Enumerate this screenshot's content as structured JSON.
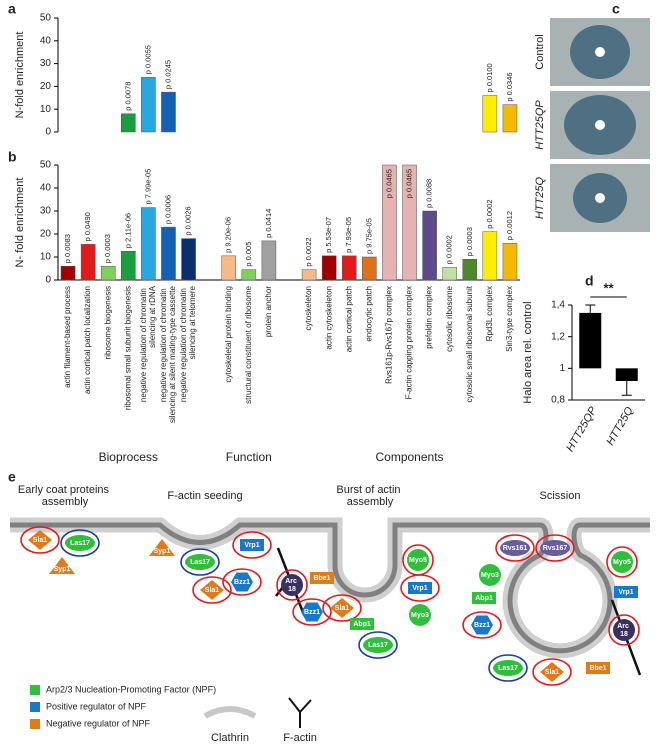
{
  "chart_data": [
    {
      "panel": "a",
      "type": "bar",
      "ylabel": "N-fold enrichment",
      "ylim": [
        0,
        50
      ],
      "yticks": [
        0,
        10,
        20,
        30,
        40,
        50
      ],
      "groups": [
        {
          "values": [
            null,
            null,
            null,
            8,
            24,
            17.5,
            null
          ],
          "p_values": [
            null,
            null,
            null,
            "p 0.0078",
            "p 0.0055",
            "p 0.0245",
            null
          ],
          "colors": [
            null,
            null,
            null,
            "#1a9e3f",
            "#29a8e0",
            "#1560b0",
            null
          ]
        },
        {
          "values": [
            null,
            null,
            null
          ],
          "p_values": [
            null,
            null,
            null
          ],
          "colors": [
            null,
            null,
            null
          ]
        },
        {
          "values": [
            null,
            null,
            null,
            null,
            null,
            null,
            null,
            null,
            null,
            16,
            12
          ],
          "p_values": [
            null,
            null,
            null,
            null,
            null,
            null,
            null,
            null,
            null,
            "p 0.0100",
            "p 0.0346"
          ],
          "colors": [
            null,
            null,
            null,
            null,
            null,
            null,
            null,
            null,
            null,
            "#ffee00",
            "#f5b800"
          ]
        }
      ]
    },
    {
      "panel": "b",
      "type": "bar",
      "ylabel": "N- fold enrichment",
      "ylim": [
        0,
        50
      ],
      "yticks": [
        0,
        10,
        20,
        30,
        40,
        50
      ],
      "groups": [
        {
          "name": "Bioprocess",
          "categories": [
            "actin filament-based process",
            "actin cortical patch localization",
            "ribosome biogenesis",
            "ribosomal small subunit biogenesis",
            "negative regulation of chromatin silencing at rDNA",
            "negative regulation of chromatin silencing at silent mating-type cassette",
            "negative regulation of chromatin silencing at telomere"
          ],
          "values": [
            6,
            15.5,
            6,
            12.5,
            31.5,
            23,
            18
          ],
          "p_values": [
            "p 0.0083",
            "p 0.0490",
            "p 0.0003",
            "p 2.11e-06",
            "p 7.99e-05",
            "p 0.0006",
            "p 0.0026"
          ],
          "colors": [
            "#a00000",
            "#e31a1c",
            "#7fcf5a",
            "#1a9e3f",
            "#29a8e0",
            "#1560b0",
            "#0a2f6e"
          ]
        },
        {
          "name": "Function",
          "categories": [
            "cytoskeletal protein binding",
            "structural constituent of ribosome",
            "protein anchor"
          ],
          "values": [
            10.5,
            4.5,
            17
          ],
          "p_values": [
            "p 9.20e-06",
            "p 0.005",
            "p 0.0414"
          ],
          "colors": [
            "#f6b98a",
            "#7fcf5a",
            "#a0a0a0"
          ]
        },
        {
          "name": "Components",
          "categories": [
            "cytoskeleton",
            "actin cytoskeleton",
            "actin cortical patch",
            "endocytic patch",
            "Rvs161p-Rvs167p complex",
            "F-actin capping protein complex",
            "prefoldin complex",
            "cytosolic ribosome",
            "cytosolic small ribosomal subunit",
            "Rpd3L complex",
            "Sin3-type complex"
          ],
          "values": [
            4.5,
            10.5,
            10.5,
            10,
            50,
            50,
            30,
            5.5,
            9,
            21,
            16
          ],
          "p_values": [
            "p 0.0022",
            "p 5.53e-07",
            "p 7.93e-05",
            "p 9.75e-05",
            "p 0.0465",
            "p 0.0465",
            "p 0.0088",
            "p 0.0002",
            "p 0.0003",
            "p 0.0002",
            "p 0.0012"
          ],
          "colors": [
            "#f6b98a",
            "#a00000",
            "#e31a1c",
            "#e0701a",
            "#e6b3b3",
            "#e6b3b3",
            "#5c4a8a",
            "#c0e0a0",
            "#4a8a2a",
            "#ffee00",
            "#f5b800"
          ]
        }
      ]
    },
    {
      "panel": "d",
      "type": "bar",
      "ylabel": "Halo area rel. control",
      "categories": [
        "HTT25QP",
        "HTT25Q"
      ],
      "values": [
        1.35,
        0.92
      ],
      "errors": [
        0.05,
        0.09
      ],
      "base": 1,
      "color": "#000000",
      "ylim": [
        0.8,
        1.4
      ],
      "yticks": [
        {
          "value": 0.8,
          "label": "0,8"
        },
        1,
        {
          "value": 1.2,
          "label": "1,2"
        },
        {
          "value": 1.4,
          "label": "1,4"
        }
      ],
      "annotation": "**"
    }
  ],
  "panel_c": {
    "panel": "c",
    "labels": [
      "Control",
      "HTT25QP",
      "HTT25Q"
    ]
  },
  "panel_e": {
    "panel": "e",
    "stages": [
      "Early coat proteins assembly",
      "F-actin seeding",
      "Burst of actin assembly",
      "Scission"
    ],
    "legend": [
      {
        "label": "Arp2/3 Nucleation-Promoting Factor (NPF)",
        "color": "#2fbf3a"
      },
      {
        "label": "Positive regulator of NPF",
        "color": "#1a78c8"
      },
      {
        "label": "Negative regulator of NPF",
        "color": "#e07b1a"
      }
    ],
    "structures": [
      "Clathrin",
      "F-actin"
    ],
    "proteins": [
      {
        "label": "Sla1",
        "shape": "diamond",
        "color": "#e07b1a",
        "ring": "#e31a1c"
      },
      {
        "label": "Las17",
        "shape": "ellipse",
        "color": "#2fbf3a",
        "ring": "#1a3e9a"
      },
      {
        "label": "Syp1",
        "shape": "triangle",
        "color": "#e07b1a"
      },
      {
        "label": "Syp1",
        "shape": "triangle",
        "color": "#e07b1a"
      },
      {
        "label": "Las17",
        "shape": "ellipse",
        "color": "#2fbf3a",
        "ring": "#1a3e9a"
      },
      {
        "label": "Vrp1",
        "shape": "rect",
        "color": "#1a78c8",
        "ring": "#e31a1c"
      },
      {
        "label": "Bzz1",
        "shape": "hexagon",
        "color": "#1a78c8",
        "ring": "#e31a1c"
      },
      {
        "label": "Sla1",
        "shape": "diamond",
        "color": "#e07b1a",
        "ring": "#e31a1c"
      },
      {
        "label": "Arc 18",
        "shape": "circle",
        "color": "#3b3060",
        "ring": "#e31a1c"
      },
      {
        "label": "Bbe1",
        "shape": "rect",
        "color": "#e07b1a"
      },
      {
        "label": "Bzz1",
        "shape": "hexagon",
        "color": "#1a78c8",
        "ring": "#e31a1c"
      },
      {
        "label": "Sla1",
        "shape": "diamond",
        "color": "#e07b1a",
        "ring": "#e31a1c"
      },
      {
        "label": "Myo5",
        "shape": "circle",
        "color": "#2fbf3a",
        "ring": "#e31a1c"
      },
      {
        "label": "Vrp1",
        "shape": "rect",
        "color": "#1a78c8",
        "ring": "#e31a1c"
      },
      {
        "label": "Abp1",
        "shape": "rect",
        "color": "#2fbf3a"
      },
      {
        "label": "Myo3",
        "shape": "circle",
        "color": "#2fbf3a"
      },
      {
        "label": "Las17",
        "shape": "ellipse",
        "color": "#2fbf3a",
        "ring": "#1a3e9a"
      },
      {
        "label": "Rvs161",
        "shape": "ellipse",
        "color": "#6a5aa0",
        "ring": "#e31a1c"
      },
      {
        "label": "Rvs167",
        "shape": "ellipse",
        "color": "#6a5aa0",
        "ring": "#e31a1c"
      },
      {
        "label": "Myo3",
        "shape": "circle",
        "color": "#2fbf3a"
      },
      {
        "label": "Abp1",
        "shape": "rect",
        "color": "#2fbf3a"
      },
      {
        "label": "Bzz1",
        "shape": "hexagon",
        "color": "#1a78c8",
        "ring": "#e31a1c"
      },
      {
        "label": "Myo5",
        "shape": "circle",
        "color": "#2fbf3a",
        "ring": "#e31a1c"
      },
      {
        "label": "Vrp1",
        "shape": "rect",
        "color": "#1a78c8"
      },
      {
        "label": "Arc 18",
        "shape": "circle",
        "color": "#3b3060",
        "ring": "#e31a1c"
      },
      {
        "label": "Las17",
        "shape": "ellipse",
        "color": "#2fbf3a",
        "ring": "#1a3e9a"
      },
      {
        "label": "Sla1",
        "shape": "diamond",
        "color": "#e07b1a",
        "ring": "#e31a1c"
      },
      {
        "label": "Bbe1",
        "shape": "rect",
        "color": "#e07b1a"
      }
    ]
  }
}
